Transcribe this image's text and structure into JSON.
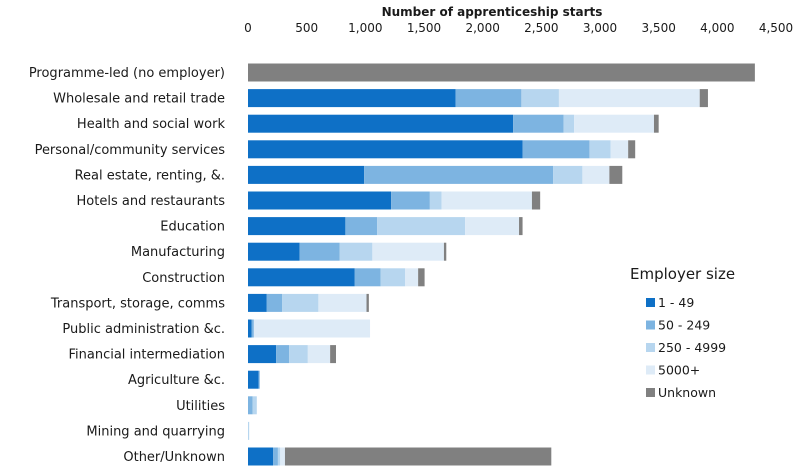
{
  "chart_data": {
    "type": "bar",
    "orientation": "horizontal",
    "stacked": true,
    "xlabel": "Number of apprenticeship starts",
    "xlabel_position": "top",
    "xlim": [
      0,
      4500
    ],
    "x_ticks": [
      "0",
      "500",
      "1,000",
      "1,500",
      "2,000",
      "2,500",
      "3,000",
      "3,500",
      "4,000",
      "4,500"
    ],
    "x_tick_values": [
      0,
      500,
      1000,
      1500,
      2000,
      2500,
      3000,
      3500,
      4000,
      4500
    ],
    "grid": false,
    "categories": [
      "Programme-led (no employer)",
      "Wholesale and retail trade",
      "Health and social work",
      "Personal/community services",
      "Real estate, renting, &.",
      "Hotels and restaurants",
      "Education",
      "Manufacturing",
      "Construction",
      "Transport, storage, comms",
      "Public administration &c.",
      "Financial intermediation",
      "Agriculture &c.",
      "Utilities",
      "Mining and quarrying",
      "Other/Unknown"
    ],
    "legend_title": "Employer size",
    "legend_position": "right",
    "series": [
      {
        "name": "1 - 49",
        "color": "#0e70c6",
        "values": [
          0,
          1770,
          2260,
          2340,
          990,
          1220,
          830,
          440,
          910,
          160,
          30,
          240,
          90,
          0,
          0,
          215
        ]
      },
      {
        "name": "50 - 249",
        "color": "#7db4e1",
        "values": [
          0,
          560,
          430,
          570,
          1610,
          330,
          270,
          340,
          220,
          130,
          20,
          110,
          10,
          40,
          0,
          40
        ]
      },
      {
        "name": "250 - 4999",
        "color": "#b7d6ef",
        "values": [
          0,
          320,
          90,
          180,
          250,
          100,
          750,
          280,
          210,
          310,
          0,
          160,
          0,
          35,
          10,
          20
        ]
      },
      {
        "name": "5000+",
        "color": "#deebf7",
        "values": [
          0,
          1200,
          680,
          150,
          230,
          770,
          460,
          610,
          110,
          410,
          990,
          190,
          0,
          0,
          0,
          40
        ]
      },
      {
        "name": "Unknown",
        "color": "#808080",
        "values": [
          4320,
          70,
          40,
          60,
          110,
          70,
          30,
          20,
          55,
          20,
          0,
          50,
          0,
          0,
          0,
          2270
        ]
      }
    ]
  }
}
